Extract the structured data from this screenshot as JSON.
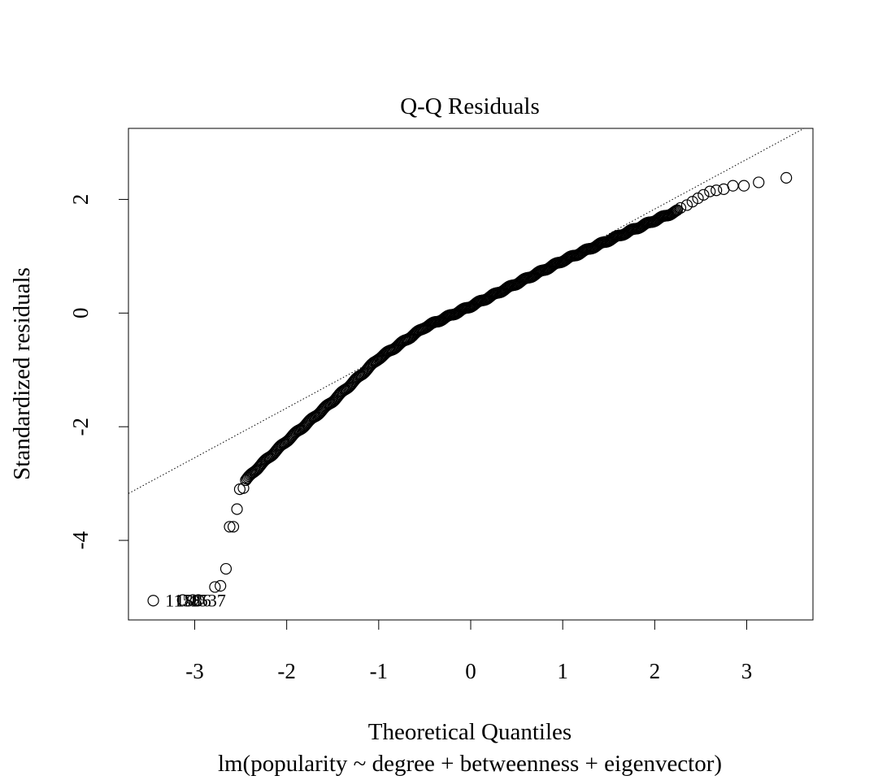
{
  "chart_data": {
    "type": "scatter",
    "title": "Q-Q Residuals",
    "xlabel": "Theoretical Quantiles",
    "subtitle": "lm(popularity ~ degree + betweenness + eigenvector)",
    "ylabel": "Standardized residuals",
    "xlim": [
      -3.72,
      3.72
    ],
    "ylim": [
      -5.4,
      3.25
    ],
    "x_ticks": [
      -3,
      -2,
      -1,
      0,
      1,
      2,
      3
    ],
    "y_ticks": [
      -4,
      -2,
      0,
      2
    ],
    "x_tick_labels": [
      "-3",
      "-2",
      "-1",
      "0",
      "1",
      "2",
      "3"
    ],
    "y_tick_labels": [
      "-4",
      "-2",
      "0",
      "2"
    ],
    "reference_line": {
      "slope": 0.875,
      "intercept": 0.08,
      "style": "dotted"
    },
    "outlier_points": [
      {
        "x": -3.45,
        "y": -5.06
      },
      {
        "x": -3.13,
        "y": -5.05
      },
      {
        "x": -3.02,
        "y": -5.05
      },
      {
        "x": -2.96,
        "y": -5.05
      },
      {
        "x": -2.78,
        "y": -4.82
      },
      {
        "x": -2.72,
        "y": -4.8
      },
      {
        "x": -2.66,
        "y": -4.5
      },
      {
        "x": -2.62,
        "y": -3.76
      },
      {
        "x": -2.58,
        "y": -3.76
      },
      {
        "x": -2.54,
        "y": -3.45
      },
      {
        "x": -2.51,
        "y": -3.1
      },
      {
        "x": -2.47,
        "y": -3.08
      }
    ],
    "outlier_labels": [
      {
        "text": "1158",
        "x": -3.32,
        "y": -5.06
      },
      {
        "text": "1886",
        "x": -3.21,
        "y": -5.06
      },
      {
        "text": "1537",
        "x": -3.05,
        "y": -5.06
      }
    ],
    "upper_points": [
      {
        "x": 2.28,
        "y": 1.85
      },
      {
        "x": 2.35,
        "y": 1.9
      },
      {
        "x": 2.41,
        "y": 1.96
      },
      {
        "x": 2.47,
        "y": 2.02
      },
      {
        "x": 2.53,
        "y": 2.08
      },
      {
        "x": 2.6,
        "y": 2.14
      },
      {
        "x": 2.67,
        "y": 2.16
      },
      {
        "x": 2.75,
        "y": 2.18
      },
      {
        "x": 2.85,
        "y": 2.24
      },
      {
        "x": 2.97,
        "y": 2.24
      },
      {
        "x": 3.13,
        "y": 2.3
      },
      {
        "x": 3.43,
        "y": 2.38
      }
    ],
    "bulk_curve": [
      {
        "x": -2.45,
        "y": -2.95
      },
      {
        "x": -2.3,
        "y": -2.7
      },
      {
        "x": -2.0,
        "y": -2.25
      },
      {
        "x": -1.5,
        "y": -1.55
      },
      {
        "x": -1.0,
        "y": -0.8
      },
      {
        "x": -0.5,
        "y": -0.25
      },
      {
        "x": 0.0,
        "y": 0.12
      },
      {
        "x": 0.5,
        "y": 0.52
      },
      {
        "x": 1.0,
        "y": 0.92
      },
      {
        "x": 1.5,
        "y": 1.28
      },
      {
        "x": 2.0,
        "y": 1.63
      },
      {
        "x": 2.25,
        "y": 1.8
      }
    ],
    "bulk_point_count": 420
  }
}
